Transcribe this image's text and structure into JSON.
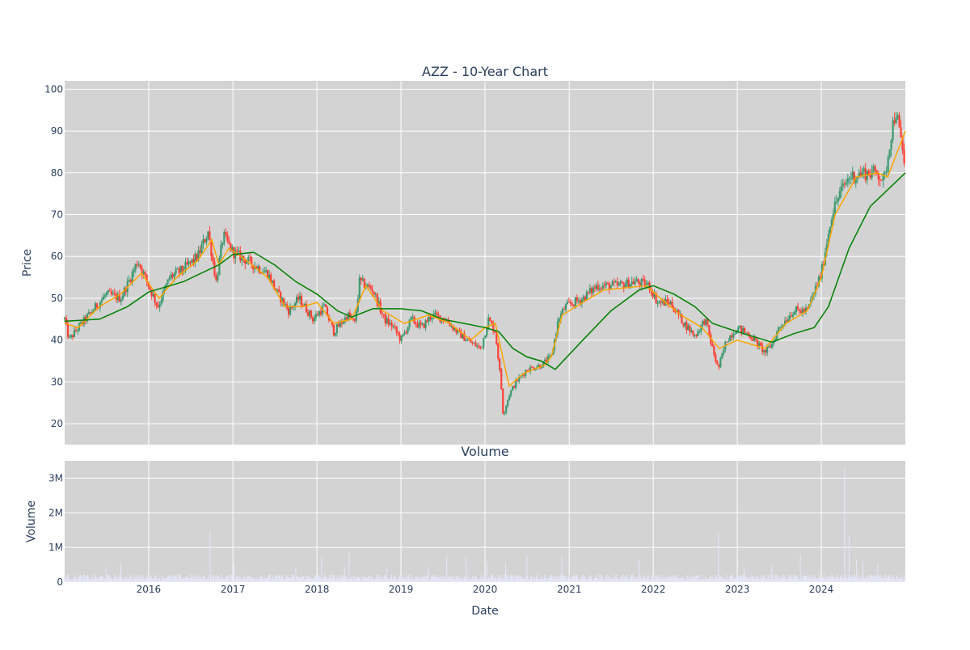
{
  "colors": {
    "plot_bg": "#d3d3d3",
    "grid": "#ffffff",
    "up": "#3d9970",
    "down": "#ff4136",
    "ma_short": "#ffa500",
    "ma_long": "#008000",
    "volume": "#e6e6fa",
    "text": "#2a3f5f"
  },
  "chart_data": [
    {
      "type": "candlestick",
      "title": "AZZ - 10-Year Chart",
      "ylabel": "Price",
      "ylim": [
        15,
        102
      ],
      "xlim": [
        "2015-01-01",
        "2024-12-31"
      ],
      "y_ticks": [
        20,
        30,
        40,
        50,
        60,
        70,
        80,
        90,
        100
      ],
      "x_ticks": [
        "2016",
        "2017",
        "2018",
        "2019",
        "2020",
        "2021",
        "2022",
        "2023",
        "2024"
      ],
      "grid": true,
      "price_path": [
        [
          "2015-01-01",
          45
        ],
        [
          "2015-01-20",
          40
        ],
        [
          "2015-03-01",
          43
        ],
        [
          "2015-05-01",
          47
        ],
        [
          "2015-07-01",
          51
        ],
        [
          "2015-09-01",
          50
        ],
        [
          "2015-10-15",
          55
        ],
        [
          "2015-11-15",
          59
        ],
        [
          "2016-01-01",
          53
        ],
        [
          "2016-02-10",
          48
        ],
        [
          "2016-04-01",
          55
        ],
        [
          "2016-06-01",
          57
        ],
        [
          "2016-08-01",
          60
        ],
        [
          "2016-09-15",
          66
        ],
        [
          "2016-10-20",
          54
        ],
        [
          "2016-11-20",
          65
        ],
        [
          "2017-01-01",
          61
        ],
        [
          "2017-04-01",
          58
        ],
        [
          "2017-06-01",
          56
        ],
        [
          "2017-07-15",
          51
        ],
        [
          "2017-09-01",
          47
        ],
        [
          "2017-10-15",
          50
        ],
        [
          "2017-12-15",
          45
        ],
        [
          "2018-02-01",
          48
        ],
        [
          "2018-03-15",
          42
        ],
        [
          "2018-05-15",
          46
        ],
        [
          "2018-06-15",
          44
        ],
        [
          "2018-07-05",
          54
        ],
        [
          "2018-09-01",
          52
        ],
        [
          "2018-10-20",
          45
        ],
        [
          "2018-12-01",
          43
        ],
        [
          "2019-01-01",
          40
        ],
        [
          "2019-02-15",
          45
        ],
        [
          "2019-04-01",
          43
        ],
        [
          "2019-05-15",
          46
        ],
        [
          "2019-07-15",
          45
        ],
        [
          "2019-09-01",
          42
        ],
        [
          "2019-10-15",
          40
        ],
        [
          "2019-12-15",
          38
        ],
        [
          "2020-01-15",
          45
        ],
        [
          "2020-02-15",
          42
        ],
        [
          "2020-03-10",
          30
        ],
        [
          "2020-03-20",
          22
        ],
        [
          "2020-04-15",
          27
        ],
        [
          "2020-05-15",
          30
        ],
        [
          "2020-07-01",
          33
        ],
        [
          "2020-09-01",
          34
        ],
        [
          "2020-10-15",
          36
        ],
        [
          "2020-11-15",
          45
        ],
        [
          "2020-12-15",
          48
        ],
        [
          "2021-03-01",
          50
        ],
        [
          "2021-05-01",
          53
        ],
        [
          "2021-08-01",
          53
        ],
        [
          "2021-10-15",
          54
        ],
        [
          "2021-12-15",
          53
        ],
        [
          "2022-01-20",
          49
        ],
        [
          "2022-03-15",
          49
        ],
        [
          "2022-05-15",
          44
        ],
        [
          "2022-07-01",
          41
        ],
        [
          "2022-08-15",
          45
        ],
        [
          "2022-09-15",
          38
        ],
        [
          "2022-10-10",
          33
        ],
        [
          "2022-11-15",
          40
        ],
        [
          "2023-01-01",
          43
        ],
        [
          "2023-03-01",
          41
        ],
        [
          "2023-05-01",
          37
        ],
        [
          "2023-06-01",
          39
        ],
        [
          "2023-07-01",
          43
        ],
        [
          "2023-09-01",
          47
        ],
        [
          "2023-11-01",
          47
        ],
        [
          "2024-01-01",
          56
        ],
        [
          "2024-02-15",
          70
        ],
        [
          "2024-03-20",
          75
        ],
        [
          "2024-05-01",
          79
        ],
        [
          "2024-07-01",
          80
        ],
        [
          "2024-09-01",
          80
        ],
        [
          "2024-10-01",
          78
        ],
        [
          "2024-11-01",
          90
        ],
        [
          "2024-11-20",
          95
        ],
        [
          "2024-12-31",
          81
        ]
      ],
      "moving_averages": [
        {
          "name": "",
          "color_key": "ma_short",
          "points": [
            [
              "2015-01-01",
              44
            ],
            [
              "2015-03-01",
              43
            ],
            [
              "2015-06-01",
              48
            ],
            [
              "2015-09-01",
              51
            ],
            [
              "2015-12-01",
              56
            ],
            [
              "2016-02-15",
              50
            ],
            [
              "2016-05-01",
              55
            ],
            [
              "2016-08-01",
              59
            ],
            [
              "2016-10-01",
              64
            ],
            [
              "2016-11-01",
              58
            ],
            [
              "2016-12-15",
              62
            ],
            [
              "2017-03-01",
              59
            ],
            [
              "2017-06-01",
              55
            ],
            [
              "2017-08-15",
              48
            ],
            [
              "2017-11-01",
              48
            ],
            [
              "2018-01-01",
              49
            ],
            [
              "2018-03-15",
              44
            ],
            [
              "2018-06-01",
              45
            ],
            [
              "2018-08-01",
              53
            ],
            [
              "2018-10-15",
              47
            ],
            [
              "2019-01-15",
              44
            ],
            [
              "2019-05-01",
              46
            ],
            [
              "2019-08-01",
              44
            ],
            [
              "2019-11-01",
              40
            ],
            [
              "2020-01-01",
              43
            ],
            [
              "2020-02-15",
              44
            ],
            [
              "2020-04-15",
              29
            ],
            [
              "2020-06-15",
              32
            ],
            [
              "2020-09-15",
              34
            ],
            [
              "2020-10-15",
              36
            ],
            [
              "2020-12-01",
              46
            ],
            [
              "2021-03-01",
              49
            ],
            [
              "2021-06-01",
              52
            ],
            [
              "2021-12-01",
              53
            ],
            [
              "2022-02-01",
              50
            ],
            [
              "2022-05-01",
              46
            ],
            [
              "2022-08-01",
              43
            ],
            [
              "2022-10-15",
              38
            ],
            [
              "2023-01-01",
              40
            ],
            [
              "2023-05-01",
              38
            ],
            [
              "2023-08-01",
              44
            ],
            [
              "2023-11-01",
              47
            ],
            [
              "2024-01-01",
              55
            ],
            [
              "2024-03-01",
              70
            ],
            [
              "2024-06-01",
              79
            ],
            [
              "2024-09-01",
              80
            ],
            [
              "2024-10-15",
              79
            ],
            [
              "2024-12-31",
              90
            ]
          ]
        },
        {
          "name": "",
          "color_key": "ma_long",
          "points": [
            [
              "2015-01-01",
              44.5
            ],
            [
              "2015-06-01",
              45
            ],
            [
              "2015-10-01",
              48
            ],
            [
              "2016-01-01",
              51.5
            ],
            [
              "2016-06-01",
              54
            ],
            [
              "2016-11-01",
              58
            ],
            [
              "2017-01-01",
              60.5
            ],
            [
              "2017-04-01",
              61
            ],
            [
              "2017-07-01",
              58
            ],
            [
              "2017-10-01",
              54
            ],
            [
              "2018-01-01",
              51
            ],
            [
              "2018-04-01",
              47
            ],
            [
              "2018-06-01",
              45.5
            ],
            [
              "2018-09-01",
              47.5
            ],
            [
              "2019-01-01",
              47.5
            ],
            [
              "2019-04-01",
              47
            ],
            [
              "2019-07-01",
              45
            ],
            [
              "2019-10-01",
              44
            ],
            [
              "2020-01-01",
              43
            ],
            [
              "2020-03-01",
              42
            ],
            [
              "2020-05-01",
              38
            ],
            [
              "2020-07-01",
              36
            ],
            [
              "2020-09-01",
              35
            ],
            [
              "2020-11-01",
              33
            ],
            [
              "2021-03-01",
              40
            ],
            [
              "2021-07-01",
              47
            ],
            [
              "2021-11-01",
              52
            ],
            [
              "2022-01-01",
              53
            ],
            [
              "2022-04-01",
              51
            ],
            [
              "2022-07-01",
              48
            ],
            [
              "2022-09-15",
              44
            ],
            [
              "2023-01-01",
              42
            ],
            [
              "2023-06-01",
              39.5
            ],
            [
              "2023-09-01",
              41.5
            ],
            [
              "2023-12-01",
              43
            ],
            [
              "2024-02-01",
              48
            ],
            [
              "2024-05-01",
              62
            ],
            [
              "2024-08-01",
              72
            ],
            [
              "2024-12-31",
              80
            ]
          ]
        }
      ]
    },
    {
      "type": "bar",
      "title": "Volume",
      "xlabel": "Date",
      "ylabel": "Volume",
      "ylim": [
        0,
        3500000
      ],
      "y_ticks": [
        0,
        1000000,
        2000000,
        3000000
      ],
      "y_tick_labels": [
        "0",
        "1M",
        "2M",
        "3M"
      ],
      "x_ticks": [
        "2016",
        "2017",
        "2018",
        "2019",
        "2020",
        "2021",
        "2022",
        "2023",
        "2024"
      ],
      "baseline": 180000,
      "spikes": [
        [
          "2015-07-01",
          450000
        ],
        [
          "2015-09-01",
          550000
        ],
        [
          "2016-07-20",
          350000
        ],
        [
          "2016-09-25",
          1500000
        ],
        [
          "2017-01-05",
          550000
        ],
        [
          "2017-10-01",
          450000
        ],
        [
          "2018-01-20",
          700000
        ],
        [
          "2018-05-01",
          450000
        ],
        [
          "2018-05-20",
          850000
        ],
        [
          "2018-11-01",
          400000
        ],
        [
          "2018-12-01",
          720000
        ],
        [
          "2019-05-01",
          450000
        ],
        [
          "2019-07-20",
          800000
        ],
        [
          "2019-10-10",
          700000
        ],
        [
          "2020-01-10",
          600000
        ],
        [
          "2020-04-01",
          550000
        ],
        [
          "2020-07-01",
          800000
        ],
        [
          "2020-12-01",
          750000
        ],
        [
          "2021-04-01",
          500000
        ],
        [
          "2021-11-01",
          650000
        ],
        [
          "2022-10-10",
          1400000
        ],
        [
          "2023-02-01",
          450000
        ],
        [
          "2023-06-01",
          450000
        ],
        [
          "2023-10-01",
          800000
        ],
        [
          "2024-01-20",
          550000
        ],
        [
          "2024-04-10",
          3300000
        ],
        [
          "2024-05-01",
          1350000
        ],
        [
          "2024-06-01",
          650000
        ],
        [
          "2024-07-01",
          600000
        ],
        [
          "2024-09-01",
          550000
        ]
      ]
    }
  ]
}
